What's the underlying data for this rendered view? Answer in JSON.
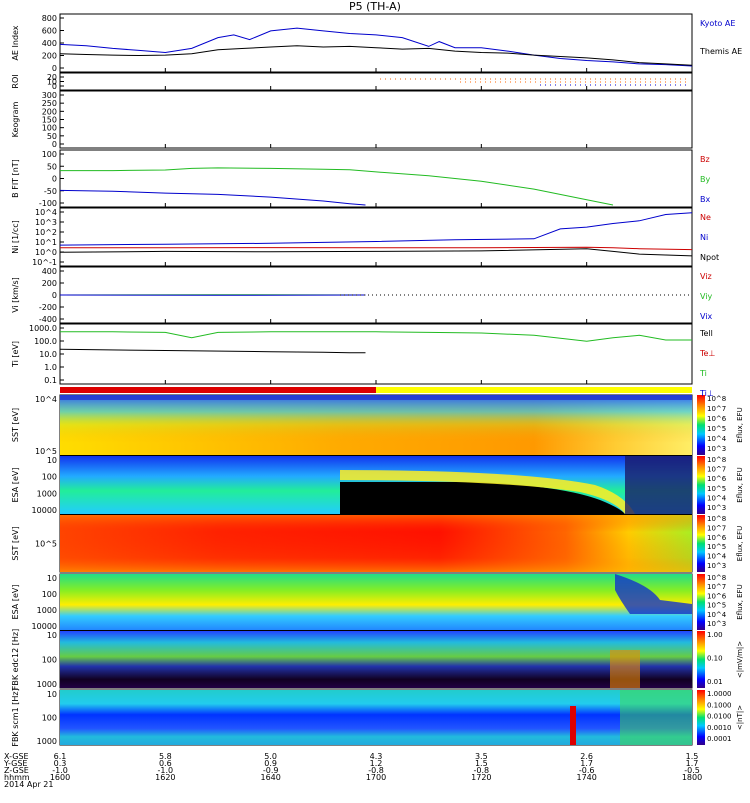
{
  "title": "P5 (TH-A)",
  "footer": {
    "row_labels": [
      "X-GSE",
      "Y-GSE",
      "Z-GSE",
      "hhmm",
      "2014 Apr 21"
    ],
    "columns": [
      {
        "x": "6.1",
        "y": "0.3",
        "z": "-1.0",
        "time": "1600"
      },
      {
        "x": "5.8",
        "y": "0.6",
        "z": "-1.0",
        "time": "1620"
      },
      {
        "x": "5.0",
        "y": "0.9",
        "z": "-0.9",
        "time": "1640"
      },
      {
        "x": "4.3",
        "y": "1.2",
        "z": "-0.8",
        "time": "1700"
      },
      {
        "x": "3.5",
        "y": "1.5",
        "z": "-0.8",
        "time": "1720"
      },
      {
        "x": "2.6",
        "y": "1.7",
        "z": "-0.6",
        "time": "1740"
      },
      {
        "x": "1.5",
        "y": "1.7",
        "z": "-0.5",
        "time": "1800"
      }
    ]
  },
  "chart_data": {
    "type": "line",
    "time_axis": {
      "start": "1600",
      "end": "1800",
      "ticks": [
        "1600",
        "1620",
        "1640",
        "1700",
        "1720",
        "1740",
        "1800"
      ]
    },
    "panels": [
      {
        "id": "ae",
        "ylabel": "AE Index",
        "yticks": [
          "0",
          "200",
          "400",
          "600",
          "800"
        ],
        "ylim": [
          0,
          800
        ],
        "series": [
          {
            "name": "Kyoto AE",
            "color": "#0000cc",
            "t": [
              1600,
              1605,
              1610,
              1615,
              1620,
              1625,
              1630,
              1633,
              1636,
              1640,
              1645,
              1650,
              1655,
              1700,
              1705,
              1710,
              1712,
              1715,
              1720,
              1725,
              1730,
              1735,
              1740,
              1745,
              1750,
              1755,
              1800
            ],
            "values": [
              380,
              360,
              320,
              290,
              260,
              320,
              480,
              520,
              450,
              580,
              620,
              580,
              540,
              520,
              480,
              350,
              420,
              330,
              330,
              280,
              220,
              170,
              140,
              120,
              90,
              80,
              60
            ]
          },
          {
            "name": "Themis AE",
            "color": "#000000",
            "t": [
              1600,
              1605,
              1610,
              1615,
              1620,
              1625,
              1630,
              1635,
              1640,
              1645,
              1650,
              1655,
              1700,
              1705,
              1710,
              1715,
              1720,
              1725,
              1730,
              1735,
              1740,
              1745,
              1750,
              1755,
              1800
            ],
            "values": [
              240,
              230,
              220,
              215,
              220,
              240,
              300,
              320,
              340,
              360,
              340,
              350,
              330,
              310,
              320,
              280,
              260,
              250,
              220,
              200,
              180,
              150,
              110,
              90,
              70
            ]
          }
        ]
      },
      {
        "id": "roi",
        "ylabel": "ROI",
        "yticks": [
          "0",
          "10",
          "20"
        ]
      },
      {
        "id": "keogram",
        "ylabel": "Keogram",
        "yticks": [
          "0",
          "50",
          "100",
          "150",
          "200",
          "250",
          "300"
        ],
        "ylim": [
          0,
          300
        ]
      },
      {
        "id": "bfit",
        "ylabel": "B FIT [nT]",
        "yticks": [
          "-100",
          "-50",
          "0",
          "50",
          "100"
        ],
        "ylim": [
          -100,
          100
        ],
        "series": [
          {
            "name": "Bz",
            "color": "#cc0000",
            "t": [],
            "values": []
          },
          {
            "name": "By",
            "color": "#22bb22",
            "t": [
              1600,
              1610,
              1620,
              1625,
              1630,
              1640,
              1650,
              1655,
              1700,
              1710,
              1720,
              1730,
              1740,
              1745
            ],
            "values": [
              30,
              30,
              32,
              38,
              40,
              38,
              35,
              33,
              25,
              10,
              -10,
              -40,
              -80,
              -100
            ]
          },
          {
            "name": "Bx",
            "color": "#0000cc",
            "t": [
              1600,
              1610,
              1620,
              1630,
              1640,
              1650,
              1655,
              1658
            ],
            "values": [
              -45,
              -48,
              -55,
              -60,
              -70,
              -85,
              -95,
              -100
            ]
          }
        ]
      },
      {
        "id": "ni",
        "ylabel": "Ni [1/cc]",
        "yticks": [
          "10^-1",
          "10^0",
          "10^1",
          "10^2",
          "10^3",
          "10^4"
        ],
        "ylim": [
          -1.5,
          4.5
        ],
        "scale": "log",
        "series": [
          {
            "name": "Ne",
            "color": "#cc0000",
            "t": [
              1600,
              1620,
              1640,
              1700,
              1720,
              1740,
              1745,
              1750,
              1800
            ],
            "values": [
              0.3,
              0.3,
              0.32,
              0.3,
              0.3,
              0.35,
              0.3,
              0.2,
              0.1
            ]
          },
          {
            "name": "Ni",
            "color": "#0000cc",
            "t": [
              1600,
              1620,
              1640,
              1700,
              1715,
              1730,
              1735,
              1740,
              1745,
              1750,
              1755,
              1800
            ],
            "values": [
              0.6,
              0.7,
              0.8,
              1.0,
              1.2,
              1.3,
              2.4,
              2.6,
              3.0,
              3.3,
              4.0,
              4.2
            ]
          },
          {
            "name": "Npot",
            "color": "#000000",
            "t": [
              1600,
              1620,
              1640,
              1700,
              1720,
              1740,
              1745,
              1750,
              1800
            ],
            "values": [
              -0.2,
              -0.1,
              -0.15,
              -0.1,
              -0.05,
              0.2,
              -0.1,
              -0.4,
              -0.6
            ]
          }
        ]
      },
      {
        "id": "vi",
        "ylabel": "Vi [km/s]",
        "yticks": [
          "-400",
          "-200",
          "0",
          "200",
          "400"
        ],
        "ylim": [
          -500,
          500
        ],
        "series": [
          {
            "name": "Viz",
            "color": "#cc0000",
            "t": [
              1600,
              1630,
              1658
            ],
            "values": [
              0,
              0,
              0
            ]
          },
          {
            "name": "Viy",
            "color": "#22bb22",
            "t": [
              1600,
              1630,
              1658
            ],
            "values": [
              0,
              5,
              0
            ]
          },
          {
            "name": "Vix",
            "color": "#0000cc",
            "t": [
              1600,
              1630,
              1658
            ],
            "values": [
              0,
              -5,
              0
            ]
          }
        ]
      },
      {
        "id": "ti",
        "ylabel": "Ti [eV]",
        "yticks": [
          "0.1",
          "1.0",
          "10.0",
          "100.0",
          "1000.0"
        ],
        "ylim": [
          -1.3,
          3.5
        ],
        "scale": "log",
        "series": [
          {
            "name": "Tell",
            "color": "#000000",
            "t": [],
            "values": []
          },
          {
            "name": "Te⊥",
            "color": "#cc0000",
            "t": [],
            "values": []
          },
          {
            "name": "Ti",
            "color": "#22bb22",
            "t": [
              1600,
              1610,
              1620,
              1625,
              1630,
              1640,
              1650,
              1700,
              1710,
              1720,
              1730,
              1740,
              1745,
              1750,
              1755,
              1800
            ],
            "values": [
              3.0,
              3.0,
              2.95,
              2.5,
              2.95,
              3.0,
              3.0,
              3.0,
              2.95,
              2.9,
              2.7,
              2.2,
              2.5,
              2.7,
              2.3,
              2.3
            ]
          },
          {
            "name": "Ti⊥",
            "color": "#0000cc",
            "t": [],
            "values": []
          },
          {
            "name": "Tell",
            "color": "#000000",
            "t": [
              1600,
              1620,
              1640,
              1650,
              1655,
              1658
            ],
            "values": [
              1.5,
              1.4,
              1.3,
              1.25,
              1.2,
              1.2
            ]
          }
        ]
      },
      {
        "id": "sst-e",
        "ylabel": "SST [eV]",
        "yticks": [
          "10^5",
          "10^4"
        ],
        "colorbar_label": "Eflux, EFU",
        "colorbar_ticks": [
          "10^8",
          "10^7",
          "10^6",
          "10^5",
          "10^4",
          "10^3"
        ]
      },
      {
        "id": "esa-e",
        "ylabel": "ESA [eV]",
        "yticks": [
          "10000",
          "1000",
          "100",
          "10"
        ],
        "colorbar_label": "Eflux, EFU",
        "colorbar_ticks": [
          "10^8",
          "10^7",
          "10^6",
          "10^5",
          "10^4",
          "10^3"
        ]
      },
      {
        "id": "sst-i",
        "ylabel": "SST [eV]",
        "yticks": [
          "10^5"
        ],
        "colorbar_label": "Eflux, EFU",
        "colorbar_ticks": [
          "10^8",
          "10^7",
          "10^6",
          "10^5",
          "10^4",
          "10^3"
        ]
      },
      {
        "id": "esa-i",
        "ylabel": "ESA [eV]",
        "yticks": [
          "10000",
          "1000",
          "100",
          "10"
        ],
        "colorbar_label": "Eflux, EFU",
        "colorbar_ticks": [
          "10^8",
          "10^7",
          "10^6",
          "10^5",
          "10^4",
          "10^3"
        ]
      },
      {
        "id": "fbk-edc",
        "ylabel": "FBK edc12 [Hz]",
        "yticks": [
          "1000",
          "100",
          "10"
        ],
        "colorbar_label": "<|mV/m|>",
        "colorbar_ticks": [
          "1.00",
          "0.10",
          "0.01"
        ]
      },
      {
        "id": "fbk-scm",
        "ylabel": "FBK scm1 [Hz]",
        "yticks": [
          "1000",
          "100",
          "10"
        ],
        "colorbar_label": "<|nT|>",
        "colorbar_ticks": [
          "1.0000",
          "0.1000",
          "0.0100",
          "0.0010",
          "0.0001"
        ]
      }
    ]
  }
}
